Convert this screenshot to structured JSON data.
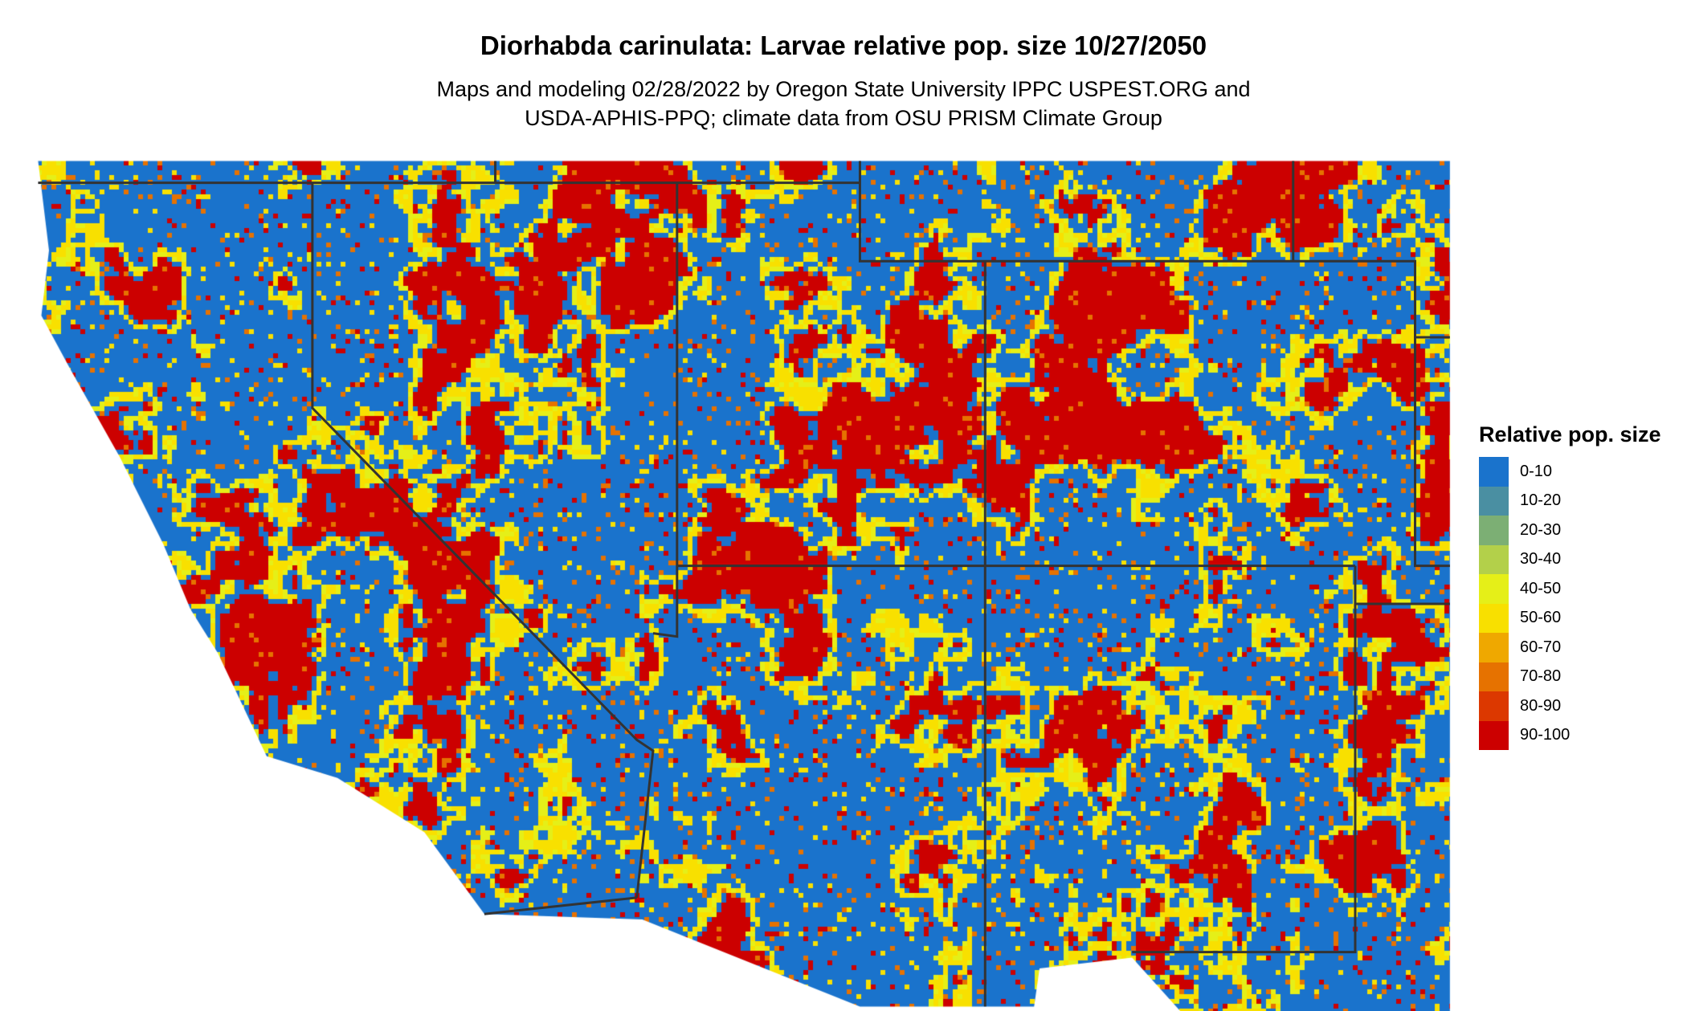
{
  "title": "Diorhabda carinulata: Larvae relative pop. size 10/27/2050",
  "subtitle_lines": [
    "Maps and modeling 02/28/2022 by Oregon State University IPPC USPEST.ORG and",
    "USDA-APHIS-PPQ; climate data from OSU PRISM Climate Group"
  ],
  "legend": {
    "title": "Relative pop. size",
    "items": [
      {
        "label": "0-10",
        "color": "#1a73cc"
      },
      {
        "label": "10-20",
        "color": "#4a8fa2"
      },
      {
        "label": "20-30",
        "color": "#7caf74"
      },
      {
        "label": "30-40",
        "color": "#b3d04a"
      },
      {
        "label": "40-50",
        "color": "#e5ef18"
      },
      {
        "label": "50-60",
        "color": "#f8e000"
      },
      {
        "label": "60-70",
        "color": "#efa800"
      },
      {
        "label": "70-80",
        "color": "#e67200"
      },
      {
        "label": "80-90",
        "color": "#dc3800"
      },
      {
        "label": "90-100",
        "color": "#cc0000"
      }
    ]
  },
  "boundary_color": "#333333"
}
